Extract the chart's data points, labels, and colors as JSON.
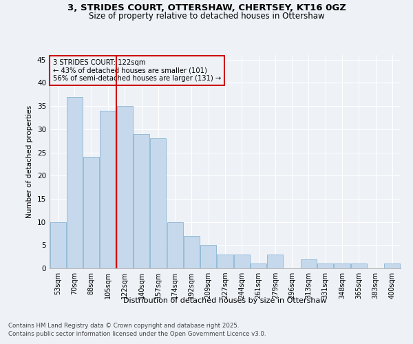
{
  "title_line1": "3, STRIDES COURT, OTTERSHAW, CHERTSEY, KT16 0GZ",
  "title_line2": "Size of property relative to detached houses in Ottershaw",
  "xlabel": "Distribution of detached houses by size in Ottershaw",
  "ylabel": "Number of detached properties",
  "categories": [
    "53sqm",
    "70sqm",
    "88sqm",
    "105sqm",
    "122sqm",
    "140sqm",
    "157sqm",
    "174sqm",
    "192sqm",
    "209sqm",
    "227sqm",
    "244sqm",
    "261sqm",
    "279sqm",
    "296sqm",
    "313sqm",
    "331sqm",
    "348sqm",
    "365sqm",
    "383sqm",
    "400sqm"
  ],
  "values": [
    10,
    37,
    24,
    34,
    35,
    29,
    28,
    10,
    7,
    5,
    3,
    3,
    1,
    3,
    0,
    2,
    1,
    1,
    1,
    0,
    1
  ],
  "bar_color": "#c6d9ec",
  "bar_edge_color": "#8ab4d4",
  "subject_line_color": "#cc0000",
  "annotation_text": "3 STRIDES COURT: 122sqm\n← 43% of detached houses are smaller (101)\n56% of semi-detached houses are larger (131) →",
  "annotation_box_color": "#cc0000",
  "ylim": [
    0,
    46
  ],
  "yticks": [
    0,
    5,
    10,
    15,
    20,
    25,
    30,
    35,
    40,
    45
  ],
  "bg_color": "#eef2f7",
  "grid_color": "#ffffff",
  "footer_line1": "Contains HM Land Registry data © Crown copyright and database right 2025.",
  "footer_line2": "Contains public sector information licensed under the Open Government Licence v3.0."
}
